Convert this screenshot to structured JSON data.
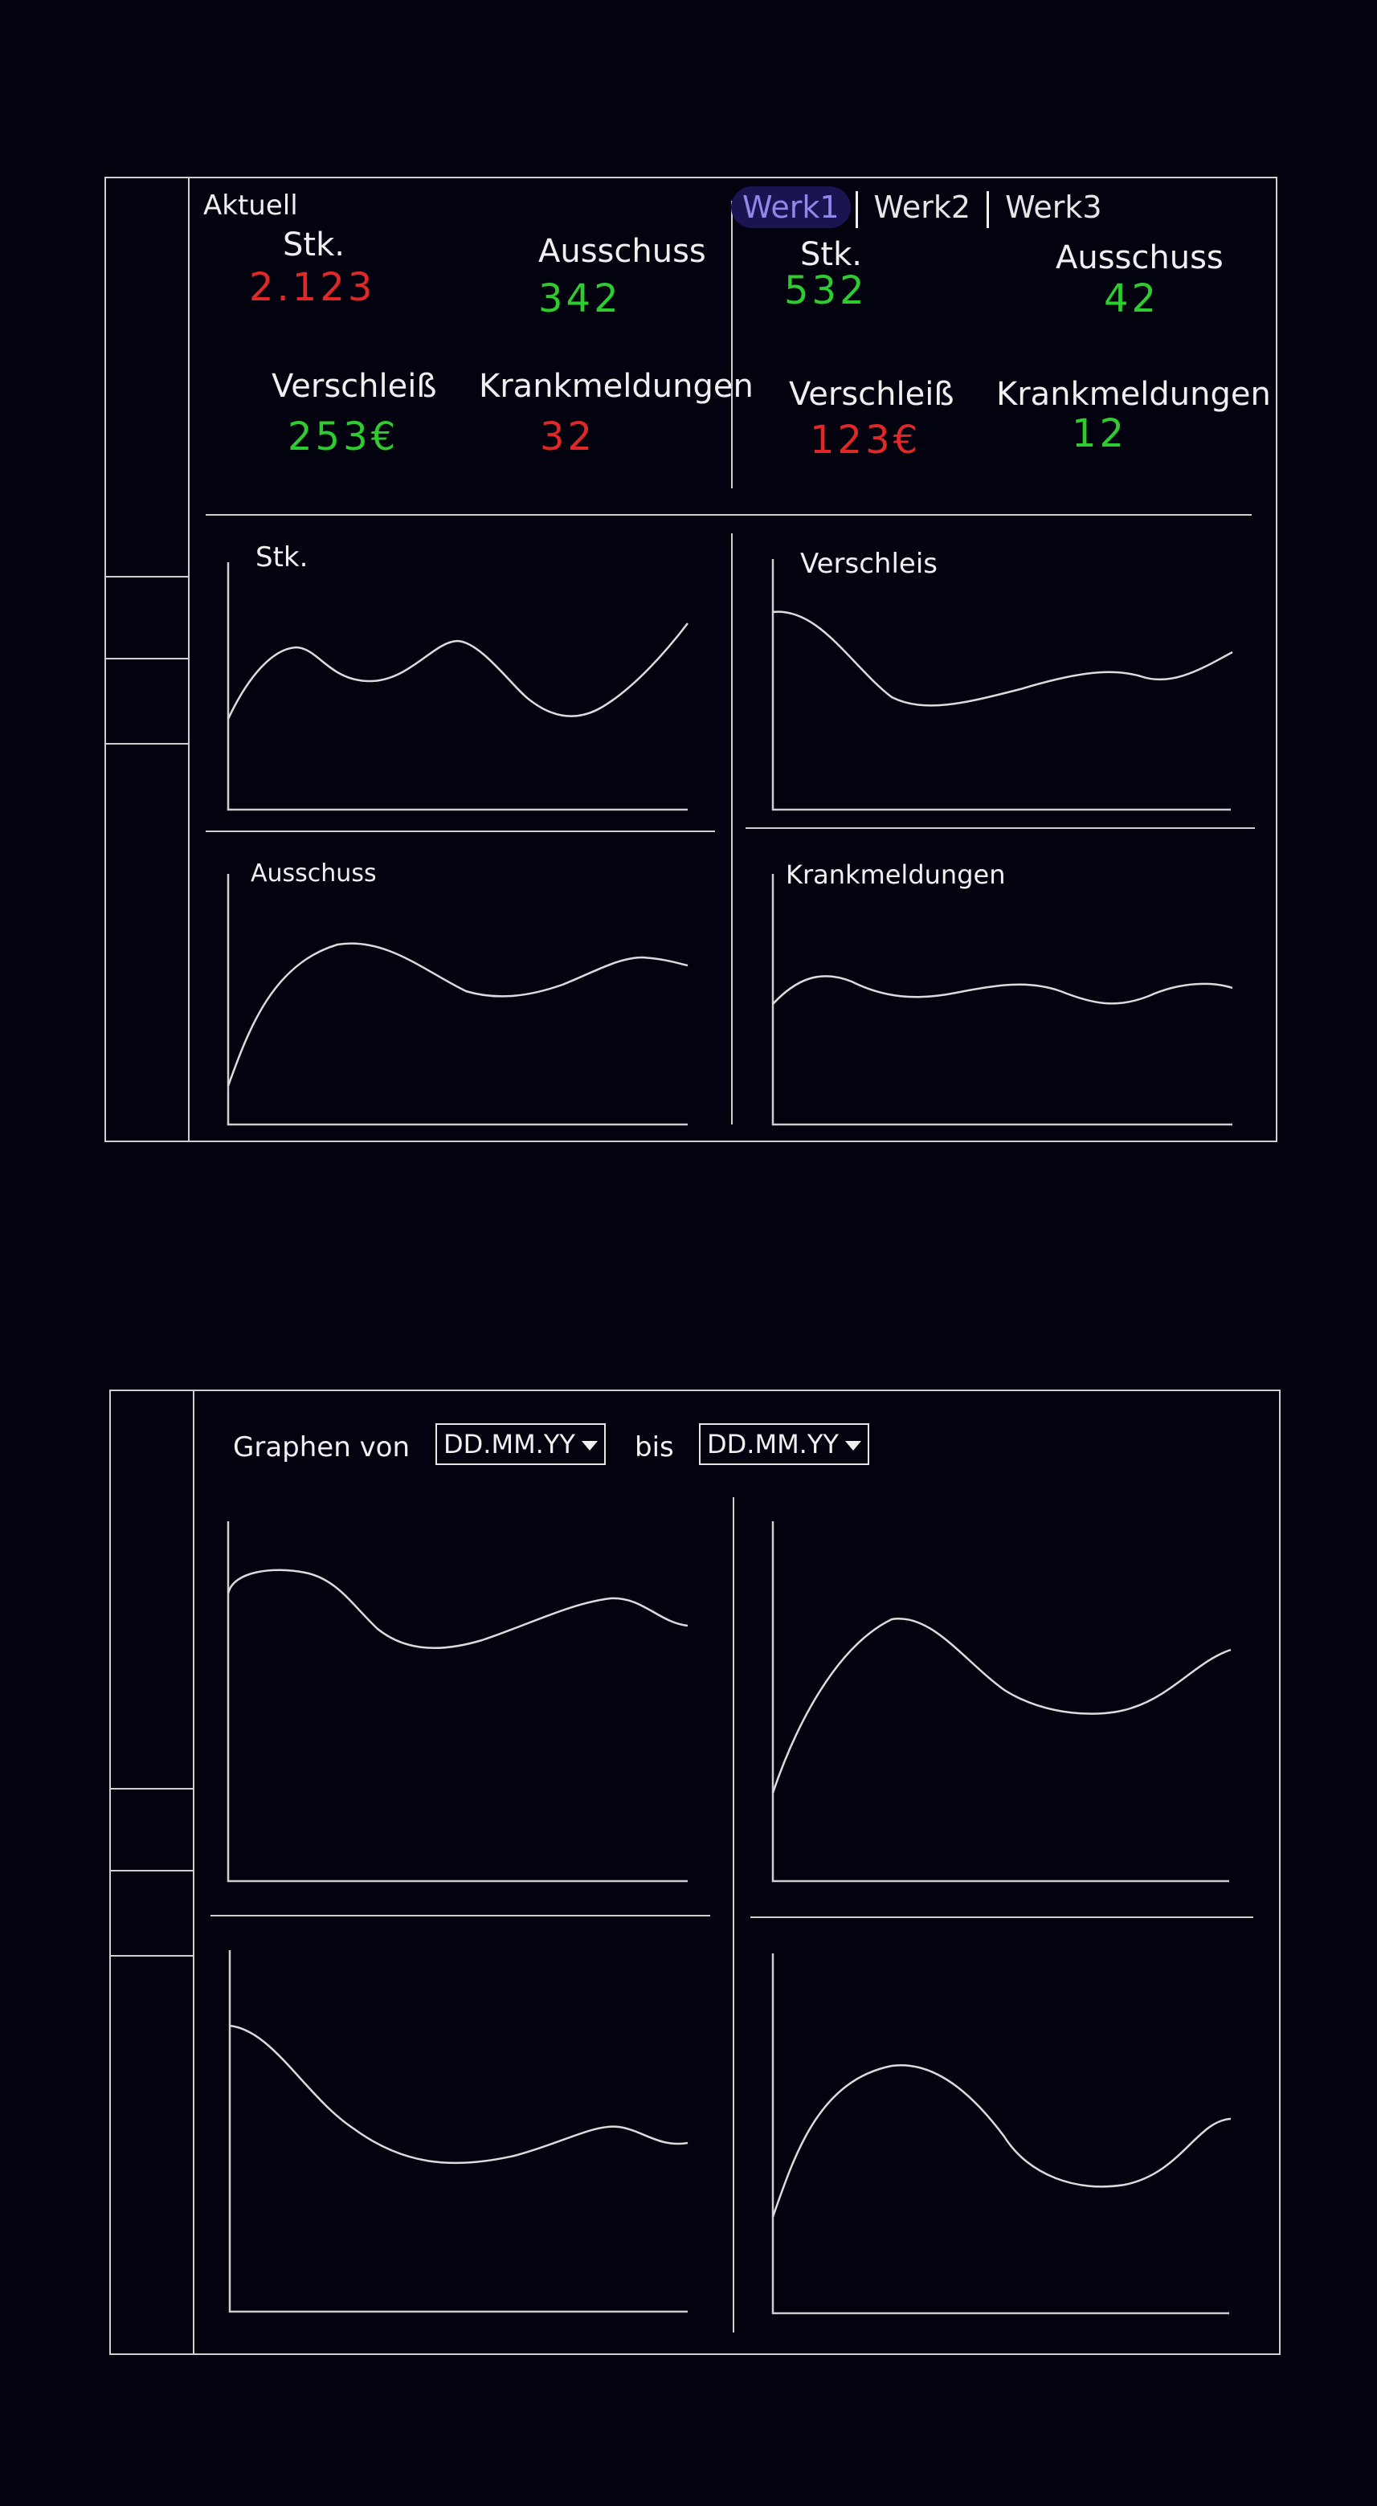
{
  "colors": {
    "good": "#2ecc2e",
    "bad": "#e02828",
    "accent": "#8f88e8",
    "accent_bg": "#1b1452"
  },
  "panel1": {
    "current": {
      "title": "Aktuell",
      "kpis": [
        {
          "label": "Stk.",
          "value": "2.123",
          "status": "bad"
        },
        {
          "label": "Ausschuss",
          "value": "342",
          "status": "good"
        },
        {
          "label": "Verschleiß",
          "value": "253€",
          "status": "good"
        },
        {
          "label": "Krankmeldungen",
          "value": "32",
          "status": "bad"
        }
      ]
    },
    "plant": {
      "tabs": [
        "Werk1",
        "Werk2",
        "Werk3"
      ],
      "active_tab": "Werk1",
      "kpis": [
        {
          "label": "Stk.",
          "value": "532",
          "status": "good"
        },
        {
          "label": "Ausschuss",
          "value": "42",
          "status": "good"
        },
        {
          "label": "Verschleiß",
          "value": "123€",
          "status": "bad"
        },
        {
          "label": "Krankmeldungen",
          "value": "12",
          "status": "good"
        }
      ]
    },
    "charts": [
      "Stk.",
      "Verschleis",
      "Ausschuss",
      "Krankmeldungen"
    ]
  },
  "panel2": {
    "range_label": "Graphen von",
    "from_value": "DD.MM.YY",
    "to_label": "bis",
    "to_value": "DD.MM.YY"
  }
}
